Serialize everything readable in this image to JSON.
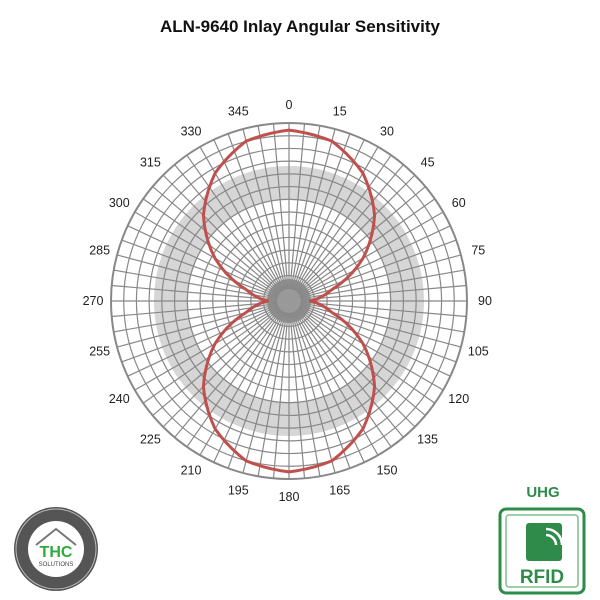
{
  "chart_data": {
    "type": "polar-line",
    "title": "ALN-9640 Inlay Angular Sensitivity",
    "angle_unit": "degrees",
    "angle_direction": "clockwise",
    "zero_location": "top",
    "angle_tick_labels": [
      "0",
      "15",
      "30",
      "45",
      "60",
      "75",
      "90",
      "105",
      "120",
      "135",
      "150",
      "165",
      "180",
      "195",
      "210",
      "225",
      "240",
      "255",
      "270",
      "285",
      "300",
      "315",
      "330",
      "345"
    ],
    "radial_range": [
      0,
      1
    ],
    "radial_tick_labels_shown": false,
    "grid": true,
    "series": [
      {
        "color": "#c0504d",
        "angles": [
          0,
          15,
          30,
          45,
          60,
          75,
          90,
          105,
          120,
          135,
          150,
          165,
          180,
          195,
          210,
          225,
          240,
          255,
          270,
          285,
          300,
          315,
          330,
          345,
          360
        ],
        "values": [
          0.96,
          0.93,
          0.83,
          0.68,
          0.48,
          0.25,
          0.12,
          0.25,
          0.48,
          0.68,
          0.83,
          0.93,
          0.96,
          0.93,
          0.83,
          0.68,
          0.48,
          0.25,
          0.12,
          0.25,
          0.48,
          0.68,
          0.83,
          0.93,
          0.96
        ]
      }
    ]
  },
  "logos": {
    "left": {
      "text_main": "THC",
      "text_sub": "SOLUTIONS",
      "ring_text": "THE HOUSE OF CUSTOM LABELS & PACKAGING"
    },
    "right": {
      "label": "UHG",
      "badge": "RFID",
      "accent": "#2e8b4a"
    }
  }
}
